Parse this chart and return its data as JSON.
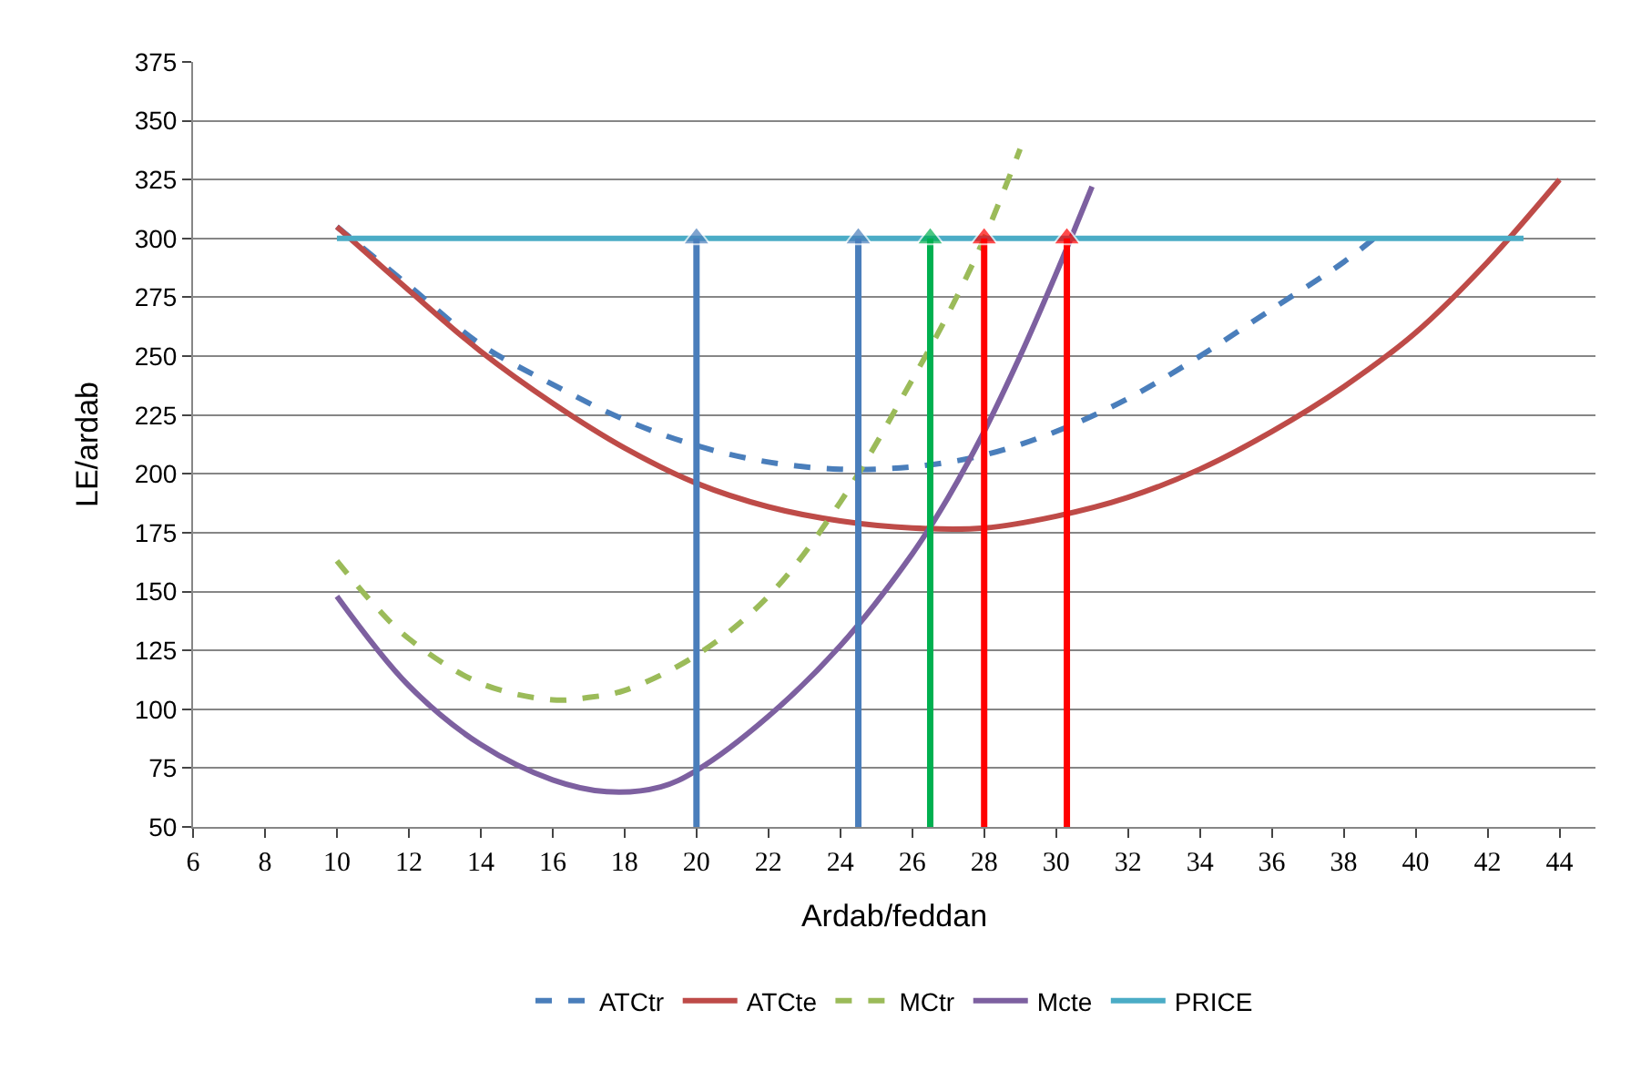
{
  "chart_data": {
    "type": "line",
    "xlabel": "Ardab/feddan",
    "ylabel": "LE/ardab",
    "xlim": [
      6,
      45
    ],
    "xticks": [
      6,
      8,
      10,
      12,
      14,
      16,
      18,
      20,
      22,
      24,
      26,
      28,
      30,
      32,
      34,
      36,
      38,
      40,
      42,
      44
    ],
    "ylim": [
      50,
      375
    ],
    "yticks": [
      50,
      75,
      100,
      125,
      150,
      175,
      200,
      225,
      250,
      275,
      300,
      325,
      350,
      375
    ],
    "grid": "y",
    "legend": "bottom",
    "series": [
      {
        "name": "ATCtr",
        "color": "#4a7ebb",
        "line_style": "dashed",
        "x": [
          10,
          12,
          14,
          16,
          18,
          20,
          22,
          24,
          26,
          28,
          30,
          32,
          34,
          36,
          38,
          39
        ],
        "values": [
          305,
          280,
          255,
          238,
          223,
          212,
          205,
          202,
          203,
          208,
          218,
          232,
          250,
          270,
          290,
          302
        ]
      },
      {
        "name": "ATCte",
        "color": "#be4b48",
        "line_style": "solid",
        "x": [
          10,
          12,
          14,
          16,
          18,
          20,
          22,
          24,
          26,
          28,
          30,
          32,
          34,
          36,
          38,
          40,
          42,
          44
        ],
        "values": [
          305,
          278,
          252,
          230,
          211,
          196,
          186,
          180,
          177,
          177,
          182,
          190,
          202,
          218,
          237,
          260,
          290,
          325
        ]
      },
      {
        "name": "MCtr",
        "color": "#9bbb59",
        "line_style": "dashed",
        "x": [
          10,
          11,
          12,
          14,
          16,
          17,
          18,
          20,
          22,
          24,
          26,
          27,
          28,
          29
        ],
        "values": [
          163,
          145,
          130,
          111,
          104,
          105,
          108,
          123,
          148,
          188,
          240,
          268,
          300,
          338
        ]
      },
      {
        "name": "Mcte",
        "color": "#7d60a0",
        "line_style": "solid",
        "x": [
          10,
          12,
          14,
          16,
          17.5,
          19,
          20,
          22,
          24,
          26,
          27,
          28,
          29,
          30,
          31
        ],
        "values": [
          148,
          110,
          85,
          70,
          65,
          67,
          74,
          97,
          127,
          166,
          190,
          218,
          250,
          285,
          322
        ]
      },
      {
        "name": "PRICE",
        "color": "#4bacc6",
        "line_style": "solid",
        "x": [
          10,
          43
        ],
        "values": [
          300,
          300
        ]
      },
      {
        "color": "#4a7ebb",
        "line_style": "solid",
        "marker": "triangle",
        "x": [
          20,
          20
        ],
        "values": [
          50,
          300
        ]
      },
      {
        "color": "#4a7ebb",
        "line_style": "solid",
        "marker": "triangle",
        "x": [
          24.5,
          24.5
        ],
        "values": [
          50,
          300
        ]
      },
      {
        "color": "#00b050",
        "line_style": "solid",
        "marker": "triangle",
        "x": [
          26.5,
          26.5
        ],
        "values": [
          50,
          300
        ]
      },
      {
        "color": "#ff0000",
        "line_style": "solid",
        "marker": "triangle",
        "x": [
          28,
          28
        ],
        "values": [
          50,
          300
        ]
      },
      {
        "color": "#ff0000",
        "line_style": "solid",
        "marker": "triangle",
        "x": [
          30.3,
          30.3
        ],
        "values": [
          50,
          300
        ]
      }
    ]
  }
}
